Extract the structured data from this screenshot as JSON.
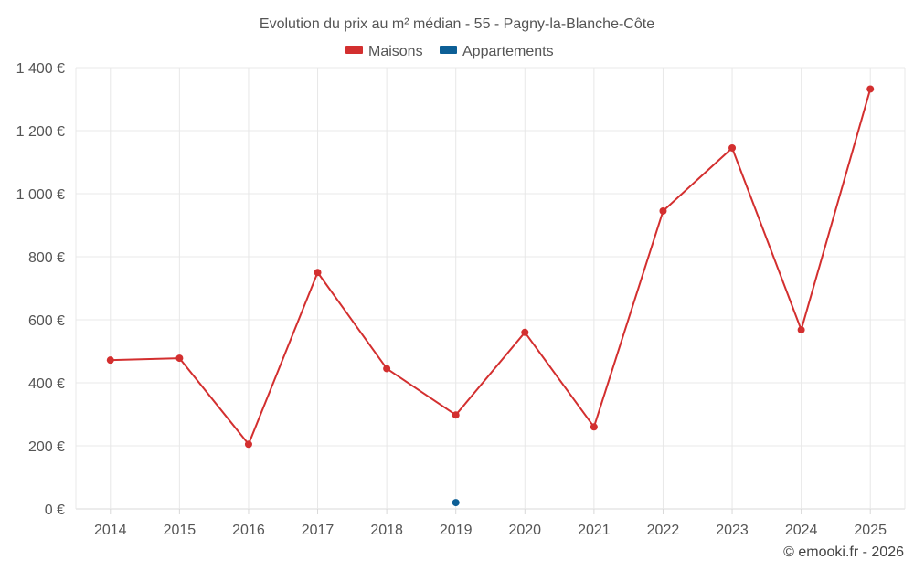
{
  "chart_data": {
    "type": "line",
    "title": "Evolution du prix au m² médian - 55 - Pagny-la-Blanche-Côte",
    "categories": [
      "2014",
      "2015",
      "2016",
      "2017",
      "2018",
      "2019",
      "2020",
      "2021",
      "2022",
      "2023",
      "2024",
      "2025"
    ],
    "y_ticks": [
      "0 €",
      "200 €",
      "400 €",
      "600 €",
      "800 €",
      "1 000 €",
      "1 200 €",
      "1 400 €"
    ],
    "y_tick_values": [
      0,
      200,
      400,
      600,
      800,
      1000,
      1200,
      1400
    ],
    "ylim": [
      0,
      1400
    ],
    "grid": true,
    "legend_position": "top-center",
    "series": [
      {
        "name": "Maisons",
        "color": "#d32f2f",
        "values": [
          472,
          478,
          205,
          750,
          445,
          298,
          560,
          260,
          945,
          1145,
          568,
          1332
        ]
      },
      {
        "name": "Appartements",
        "color": "#0d5f96",
        "values": [
          null,
          null,
          null,
          null,
          null,
          20,
          null,
          null,
          null,
          null,
          null,
          null
        ]
      }
    ]
  },
  "credit": "© emooki.fr - 2026"
}
